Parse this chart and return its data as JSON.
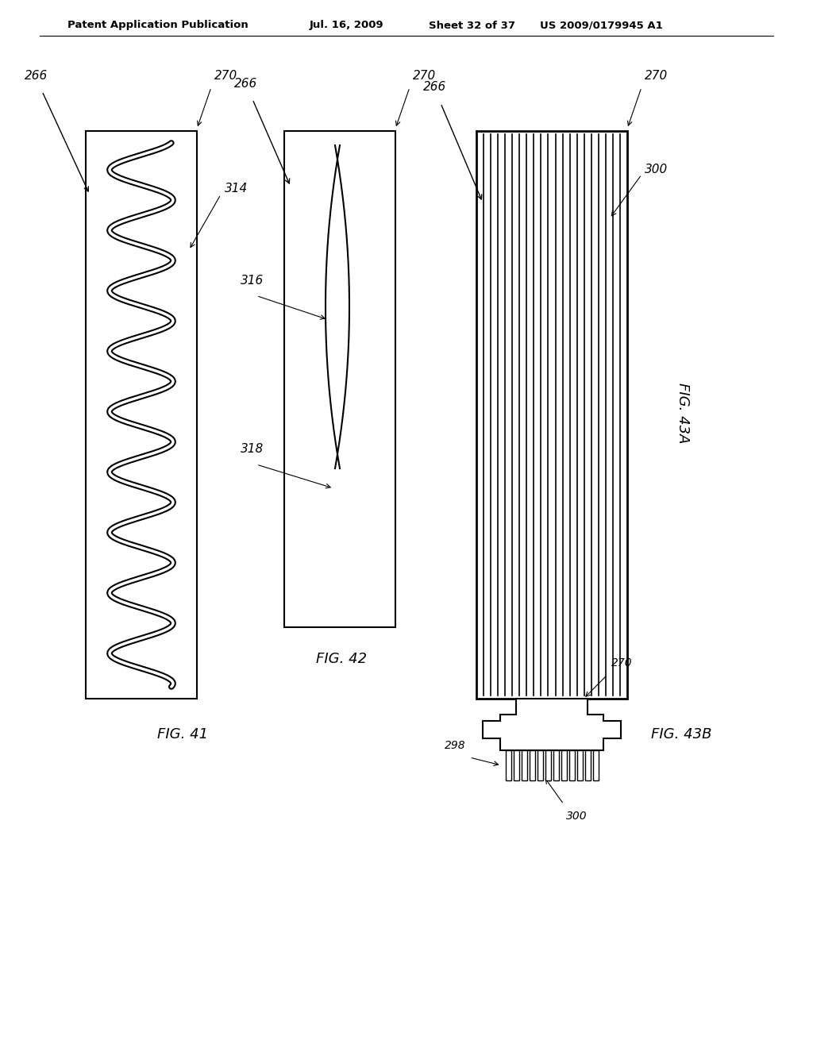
{
  "bg_color": "#ffffff",
  "header_text": "Patent Application Publication",
  "header_date": "Jul. 16, 2009",
  "header_sheet": "Sheet 32 of 37",
  "header_patent": "US 2009/0179945 A1",
  "fig41_label": "FIG. 41",
  "fig42_label": "FIG. 42",
  "fig43a_label": "FIG. 43A",
  "fig43b_label": "FIG. 43B",
  "label_266": "266",
  "label_270": "270",
  "label_314": "314",
  "label_316": "316",
  "label_318": "318",
  "label_298": "298",
  "label_300": "300"
}
